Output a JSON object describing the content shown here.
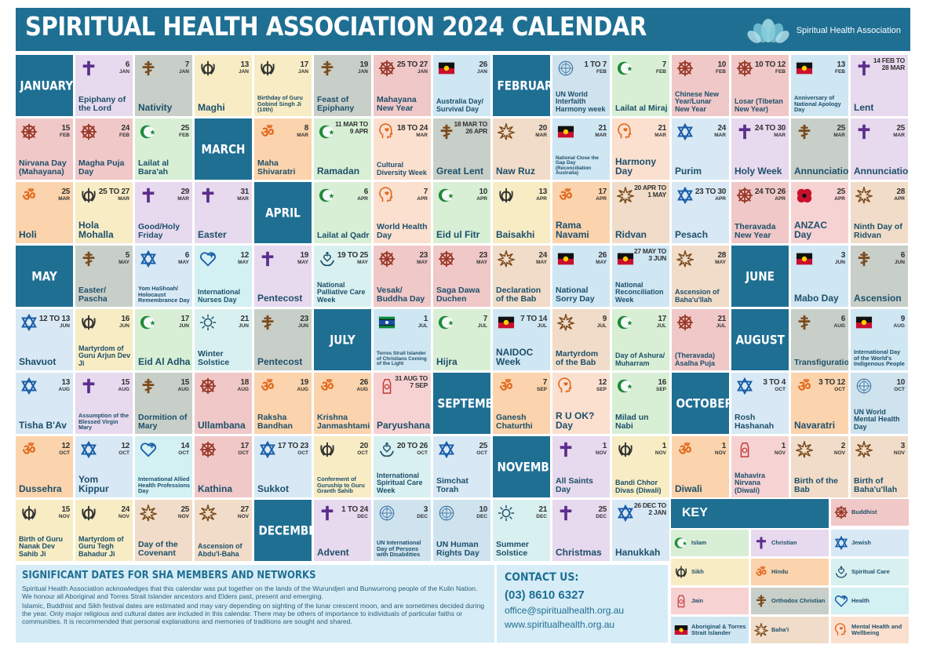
{
  "header": {
    "title": "SPIRITUAL HEALTH ASSOCIATION 2024 CALENDAR",
    "org": "Spiritual Health Association"
  },
  "colors": {
    "brand": "#1f6f93",
    "text": "#1d4f6a"
  },
  "cells": [
    {
      "t": "month",
      "name": "JANUARY"
    },
    {
      "t": "christ",
      "icon": "cross-icon",
      "d": "6",
      "m": "JAN",
      "name": "Epiphany of the Lord"
    },
    {
      "t": "orth",
      "icon": "orthodox-cross-icon",
      "d": "7",
      "m": "JAN",
      "name": "Nativity"
    },
    {
      "t": "sikh",
      "icon": "khanda-icon",
      "d": "13",
      "m": "JAN",
      "name": "Maghi"
    },
    {
      "t": "sikh",
      "icon": "khanda-icon",
      "d": "17",
      "m": "JAN",
      "name": "Birthday of Guru Gobind Singh Ji (10th)"
    },
    {
      "t": "orth",
      "icon": "orthodox-cross-icon",
      "d": "19",
      "m": "JAN",
      "name": "Feast of Epiphany"
    },
    {
      "t": "buddh",
      "icon": "dharma-wheel-icon",
      "d": "25 TO 27",
      "m": "JAN",
      "name": "Mahayana New Year"
    },
    {
      "t": "abor",
      "icon": "aboriginal-flag-icon",
      "d": "26",
      "m": "JAN",
      "name": "Australia Day/ Survival Day"
    },
    {
      "t": "month",
      "name": "FEBRUARY"
    },
    {
      "t": "un",
      "icon": "un-emblem-icon",
      "d": "1 TO 7",
      "m": "FEB",
      "name": "UN World Interfaith Harmony week"
    },
    {
      "t": "islam",
      "icon": "crescent-star-icon",
      "d": "7",
      "m": "FEB",
      "name": "Lailat al Miraj"
    },
    {
      "t": "buddh",
      "icon": "dharma-wheel-icon",
      "d": "10",
      "m": "FEB",
      "name": "Chinese New Year/Lunar New Year"
    },
    {
      "t": "buddh",
      "icon": "dharma-wheel-icon",
      "d": "10 TO 12",
      "m": "FEB",
      "name": "Losar (Tibetan New Year)"
    },
    {
      "t": "abor",
      "icon": "aboriginal-flag-icon",
      "d": "13",
      "m": "FEB",
      "name": "Anniversary of National Apology Day"
    },
    {
      "t": "christ",
      "icon": "cross-icon",
      "d": "14 FEB TO 28 MAR",
      "m": "",
      "name": "Lent"
    },
    {
      "t": "buddh",
      "icon": "dharma-wheel-icon",
      "d": "15",
      "m": "FEB",
      "name": "Nirvana Day (Mahayana)"
    },
    {
      "t": "buddh",
      "icon": "dharma-wheel-icon",
      "d": "24",
      "m": "FEB",
      "name": "Magha Puja Day"
    },
    {
      "t": "islam",
      "icon": "crescent-star-icon",
      "d": "25",
      "m": "FEB",
      "name": "Lailat al Bara'ah"
    },
    {
      "t": "month",
      "name": "MARCH"
    },
    {
      "t": "hindu",
      "icon": "om-icon",
      "d": "8",
      "m": "MAR",
      "name": "Maha Shivaratri"
    },
    {
      "t": "islam",
      "icon": "crescent-star-icon",
      "d": "11 MAR TO 9 APR",
      "m": "",
      "name": "Ramadan"
    },
    {
      "t": "mental",
      "icon": "mental-health-icon",
      "d": "18 TO 24",
      "m": "MAR",
      "name": "Cultural Diversity Week"
    },
    {
      "t": "orth",
      "icon": "orthodox-cross-icon",
      "d": "18 MAR TO 26 APR",
      "m": "",
      "name": "Great Lent"
    },
    {
      "t": "bahai",
      "icon": "bahai-star-icon",
      "d": "20",
      "m": "MAR",
      "name": "Naw Ruz"
    },
    {
      "t": "abor",
      "icon": "aboriginal-flag-icon",
      "d": "21",
      "m": "MAR",
      "name": "National Close the Gap Day (Reconciliation Australia)"
    },
    {
      "t": "mental",
      "icon": "mental-health-icon",
      "d": "21",
      "m": "MAR",
      "name": "Harmony Day"
    },
    {
      "t": "judaism",
      "icon": "star-of-david-icon",
      "d": "24",
      "m": "MAR",
      "name": "Purim"
    },
    {
      "t": "christ",
      "icon": "cross-icon",
      "d": "24 TO 30",
      "m": "MAR",
      "name": "Holy Week"
    },
    {
      "t": "orth",
      "icon": "orthodox-cross-icon",
      "d": "25",
      "m": "MAR",
      "name": "Annunciation"
    },
    {
      "t": "christ",
      "icon": "cross-icon",
      "d": "25",
      "m": "MAR",
      "name": "Annunciation"
    },
    {
      "t": "hindu",
      "icon": "om-icon",
      "d": "25",
      "m": "MAR",
      "name": "Holi"
    },
    {
      "t": "sikh",
      "icon": "khanda-icon",
      "d": "25 TO 27",
      "m": "MAR",
      "name": "Hola Mohalla"
    },
    {
      "t": "christ",
      "icon": "cross-icon",
      "d": "29",
      "m": "MAR",
      "name": "Good/Holy Friday"
    },
    {
      "t": "christ",
      "icon": "cross-icon",
      "d": "31",
      "m": "MAR",
      "name": "Easter"
    },
    {
      "t": "month",
      "name": "APRIL"
    },
    {
      "t": "islam",
      "icon": "crescent-star-icon",
      "d": "6",
      "m": "APR",
      "name": "Lailat al Qadr"
    },
    {
      "t": "mental",
      "icon": "mental-health-icon",
      "d": "7",
      "m": "APR",
      "name": "World Health Day"
    },
    {
      "t": "islam",
      "icon": "crescent-star-icon",
      "d": "10",
      "m": "APR",
      "name": "Eid ul Fitr"
    },
    {
      "t": "sikh",
      "icon": "khanda-icon",
      "d": "13",
      "m": "APR",
      "name": "Baisakhi"
    },
    {
      "t": "hindu",
      "icon": "om-icon",
      "d": "17",
      "m": "APR",
      "name": "Rama Navami"
    },
    {
      "t": "bahai",
      "icon": "bahai-star-icon",
      "d": "20 APR TO 1 MAY",
      "m": "",
      "name": "Ridvan"
    },
    {
      "t": "judaism",
      "icon": "star-of-david-icon",
      "d": "23 TO 30",
      "m": "APR",
      "name": "Pesach"
    },
    {
      "t": "buddh",
      "icon": "dharma-wheel-icon",
      "d": "24 TO 26",
      "m": "APR",
      "name": "Theravada New Year"
    },
    {
      "t": "jain",
      "icon": "poppy-icon",
      "d": "25",
      "m": "APR",
      "name": "ANZAC Day"
    },
    {
      "t": "bahai",
      "icon": "bahai-star-icon",
      "d": "28",
      "m": "APR",
      "name": "Ninth Day of Ridvan"
    },
    {
      "t": "month",
      "name": "MAY"
    },
    {
      "t": "orth",
      "icon": "orthodox-cross-icon",
      "d": "5",
      "m": "MAY",
      "name": "Easter/ Pascha"
    },
    {
      "t": "judaism",
      "icon": "star-of-david-icon",
      "d": "6",
      "m": "MAY",
      "name": "Yom HaShoah/ Holocaust Remembrance Day"
    },
    {
      "t": "health",
      "icon": "health-heart-icon",
      "d": "12",
      "m": "MAY",
      "name": "International Nurses Day"
    },
    {
      "t": "christ",
      "icon": "cross-icon",
      "d": "19",
      "m": "MAY",
      "name": "Pentecost"
    },
    {
      "t": "care",
      "icon": "spiritual-care-icon",
      "d": "19 TO 25",
      "m": "MAY",
      "name": "National Palliative Care Week"
    },
    {
      "t": "buddh",
      "icon": "dharma-wheel-icon",
      "d": "23",
      "m": "MAY",
      "name": "Vesak/ Buddha Day"
    },
    {
      "t": "buddh",
      "icon": "dharma-wheel-icon",
      "d": "23",
      "m": "MAY",
      "name": "Saga Dawa Duchen"
    },
    {
      "t": "bahai",
      "icon": "bahai-star-icon",
      "d": "24",
      "m": "MAY",
      "name": "Declaration of the Bab"
    },
    {
      "t": "abor",
      "icon": "aboriginal-flag-icon",
      "d": "26",
      "m": "MAY",
      "name": "National Sorry Day"
    },
    {
      "t": "abor",
      "icon": "aboriginal-flag-icon",
      "d": "27 MAY TO 3 JUN",
      "m": "",
      "name": "National Reconciliation Week"
    },
    {
      "t": "bahai",
      "icon": "bahai-star-icon",
      "d": "28",
      "m": "MAY",
      "name": "Ascension of Baha'u'llah"
    },
    {
      "t": "month",
      "name": "JUNE"
    },
    {
      "t": "abor",
      "icon": "aboriginal-flag-icon",
      "d": "3",
      "m": "JUN",
      "name": "Mabo Day"
    },
    {
      "t": "orth",
      "icon": "orthodox-cross-icon",
      "d": "6",
      "m": "JUN",
      "name": "Ascension"
    },
    {
      "t": "judaism",
      "icon": "star-of-david-icon",
      "d": "12 TO 13",
      "m": "JUN",
      "name": "Shavuot"
    },
    {
      "t": "sikh",
      "icon": "khanda-icon",
      "d": "16",
      "m": "JUN",
      "name": "Martyrdom of Guru Arjun Dev Ji"
    },
    {
      "t": "islam",
      "icon": "crescent-star-icon",
      "d": "17",
      "m": "JUN",
      "name": "Eid Al Adha"
    },
    {
      "t": "care",
      "icon": "sun-icon",
      "d": "21",
      "m": "JUN",
      "name": "Winter Solstice"
    },
    {
      "t": "orth",
      "icon": "orthodox-cross-icon",
      "d": "23",
      "m": "JUN",
      "name": "Pentecost"
    },
    {
      "t": "month",
      "name": "JULY"
    },
    {
      "t": "abor",
      "icon": "torres-strait-flag-icon",
      "d": "1",
      "m": "JUL",
      "name": "Torres Strait Islander of Christians Coming of the Light"
    },
    {
      "t": "islam",
      "icon": "crescent-star-icon",
      "d": "7",
      "m": "JUL",
      "name": "Hijra"
    },
    {
      "t": "abor",
      "icon": "aboriginal-flag-icon",
      "d": "7 TO 14",
      "m": "JUL",
      "name": "NAIDOC Week"
    },
    {
      "t": "bahai",
      "icon": "bahai-star-icon",
      "d": "9",
      "m": "JUL",
      "name": "Martyrdom of the Bab"
    },
    {
      "t": "islam",
      "icon": "crescent-star-icon",
      "d": "17",
      "m": "JUL",
      "name": "Day of Ashura/ Muharram"
    },
    {
      "t": "buddh",
      "icon": "dharma-wheel-icon",
      "d": "21",
      "m": "JUL",
      "name": "(Theravada) Asalha Puja"
    },
    {
      "t": "month",
      "name": "AUGUST"
    },
    {
      "t": "orth",
      "icon": "orthodox-cross-icon",
      "d": "6",
      "m": "AUG",
      "name": "Transfiguration"
    },
    {
      "t": "abor",
      "icon": "aboriginal-flag-icon",
      "d": "9",
      "m": "AUG",
      "name": "International Day of the World's Indigenous People"
    },
    {
      "t": "judaism",
      "icon": "star-of-david-icon",
      "d": "13",
      "m": "AUG",
      "name": "Tisha B'Av"
    },
    {
      "t": "christ",
      "icon": "cross-icon",
      "d": "15",
      "m": "AUG",
      "name": "Assumption of the Blessed Virgin Mary"
    },
    {
      "t": "orth",
      "icon": "orthodox-cross-icon",
      "d": "15",
      "m": "AUG",
      "name": "Dormition of Mary"
    },
    {
      "t": "buddh",
      "icon": "dharma-wheel-icon",
      "d": "18",
      "m": "AUG",
      "name": "Ullambana"
    },
    {
      "t": "hindu",
      "icon": "om-icon",
      "d": "19",
      "m": "AUG",
      "name": "Raksha Bandhan"
    },
    {
      "t": "hindu",
      "icon": "om-icon",
      "d": "26",
      "m": "AUG",
      "name": "Krishna Janmashtami"
    },
    {
      "t": "jain",
      "icon": "jain-hand-icon",
      "d": "31 AUG TO 7 SEP",
      "m": "",
      "name": "Paryushana"
    },
    {
      "t": "month",
      "name": "SEPTEMBER"
    },
    {
      "t": "hindu",
      "icon": "om-icon",
      "d": "7",
      "m": "SEP",
      "name": "Ganesh Chaturthi"
    },
    {
      "t": "mental",
      "icon": "mental-health-icon",
      "d": "12",
      "m": "SEP",
      "name": "R U OK? Day"
    },
    {
      "t": "islam",
      "icon": "crescent-star-icon",
      "d": "16",
      "m": "SEP",
      "name": "Milad un Nabi"
    },
    {
      "t": "month",
      "name": "OCTOBER"
    },
    {
      "t": "judaism",
      "icon": "star-of-david-icon",
      "d": "3 TO 4",
      "m": "OCT",
      "name": "Rosh Hashanah"
    },
    {
      "t": "hindu",
      "icon": "om-icon",
      "d": "3 TO 12",
      "m": "OCT",
      "name": "Navaratri"
    },
    {
      "t": "un",
      "icon": "un-emblem-icon",
      "d": "10",
      "m": "OCT",
      "name": "UN World Mental Health Day"
    },
    {
      "t": "hindu",
      "icon": "om-icon",
      "d": "12",
      "m": "OCT",
      "name": "Dussehra"
    },
    {
      "t": "judaism",
      "icon": "star-of-david-icon",
      "d": "12",
      "m": "OCT",
      "name": "Yom Kippur"
    },
    {
      "t": "health",
      "icon": "health-heart-icon",
      "d": "14",
      "m": "OCT",
      "name": "International Allied Health Professions Day"
    },
    {
      "t": "buddh",
      "icon": "dharma-wheel-icon",
      "d": "17",
      "m": "OCT",
      "name": "Kathina"
    },
    {
      "t": "judaism",
      "icon": "star-of-david-icon",
      "d": "17 TO 23",
      "m": "OCT",
      "name": "Sukkot"
    },
    {
      "t": "sikh",
      "icon": "khanda-icon",
      "d": "20",
      "m": "OCT",
      "name": "Conferment of Guruship to Guru Granth Sahib"
    },
    {
      "t": "care",
      "icon": "spiritual-care-icon",
      "d": "20 TO 26",
      "m": "OCT",
      "name": "International Spiritual Care Week"
    },
    {
      "t": "judaism",
      "icon": "star-of-david-icon",
      "d": "25",
      "m": "OCT",
      "name": "Simchat Torah"
    },
    {
      "t": "month",
      "name": "NOVEMBER"
    },
    {
      "t": "christ",
      "icon": "cross-icon",
      "d": "1",
      "m": "NOV",
      "name": "All Saints Day"
    },
    {
      "t": "sikh",
      "icon": "khanda-icon",
      "d": "1",
      "m": "NOV",
      "name": "Bandi Chhor Divas (Diwali)"
    },
    {
      "t": "hindu",
      "icon": "om-icon",
      "d": "1",
      "m": "NOV",
      "name": "Diwali"
    },
    {
      "t": "jain",
      "icon": "jain-hand-icon",
      "d": "1",
      "m": "NOV",
      "name": "Mahavira Nirvana (Diwali)"
    },
    {
      "t": "bahai",
      "icon": "bahai-star-icon",
      "d": "2",
      "m": "NOV",
      "name": "Birth of the Bab"
    },
    {
      "t": "bahai",
      "icon": "bahai-star-icon",
      "d": "3",
      "m": "NOV",
      "name": "Birth of Baha'u'llah"
    },
    {
      "t": "sikh",
      "icon": "khanda-icon",
      "d": "15",
      "m": "NOV",
      "name": "Birth of Guru Nanak Dev Sahib Ji"
    },
    {
      "t": "sikh",
      "icon": "khanda-icon",
      "d": "24",
      "m": "NOV",
      "name": "Martyrdom of Guru Tegh Bahadur Ji"
    },
    {
      "t": "bahai",
      "icon": "bahai-star-icon",
      "d": "25",
      "m": "NOV",
      "name": "Day of the Covenant"
    },
    {
      "t": "bahai",
      "icon": "bahai-star-icon",
      "d": "27",
      "m": "NOV",
      "name": "Ascension of Abdu'l-Baha"
    },
    {
      "t": "month",
      "name": "DECEMBER"
    },
    {
      "t": "christ",
      "icon": "cross-icon",
      "d": "1 TO 24",
      "m": "DEC",
      "name": "Advent"
    },
    {
      "t": "un",
      "icon": "un-emblem-icon",
      "d": "3",
      "m": "DEC",
      "name": "UN International Day of Persons with Disabilities"
    },
    {
      "t": "un",
      "icon": "un-emblem-icon",
      "d": "10",
      "m": "DEC",
      "name": "UN Human Rights Day"
    },
    {
      "t": "care",
      "icon": "sun-icon",
      "d": "21",
      "m": "DEC",
      "name": "Summer Solstice"
    },
    {
      "t": "christ",
      "icon": "cross-icon",
      "d": "25",
      "m": "DEC",
      "name": "Christmas"
    },
    {
      "t": "judaism",
      "icon": "star-of-david-icon",
      "d": "26 DEC TO 2 JAN",
      "m": "",
      "name": "Hanukkah"
    }
  ],
  "key": {
    "title": "KEY",
    "items": [
      {
        "t": "buddh",
        "icon": "dharma-wheel-icon",
        "label": "Buddhist"
      },
      {
        "t": "islam",
        "icon": "crescent-star-icon",
        "label": "Islam"
      },
      {
        "t": "christ",
        "icon": "cross-icon",
        "label": "Christian"
      },
      {
        "t": "judaism",
        "icon": "star-of-david-icon",
        "label": "Jewish"
      },
      {
        "t": "sikh",
        "icon": "khanda-icon",
        "label": "Sikh"
      },
      {
        "t": "hindu",
        "icon": "om-icon",
        "label": "Hindu"
      },
      {
        "t": "care",
        "icon": "spiritual-care-icon",
        "label": "Spiritual Care"
      },
      {
        "t": "jain",
        "icon": "jain-hand-icon",
        "label": "Jain"
      },
      {
        "t": "orth",
        "icon": "orthodox-cross-icon",
        "label": "Orthodox Christian"
      },
      {
        "t": "health",
        "icon": "health-heart-icon",
        "label": "Health"
      },
      {
        "t": "abor",
        "icon": "aboriginal-flag-icon",
        "label": "Aboriginal & Torres Strait Islander"
      },
      {
        "t": "bahai",
        "icon": "bahai-star-icon",
        "label": "Baha'i"
      },
      {
        "t": "mental",
        "icon": "mental-health-icon",
        "label": "Mental Health and Wellbeing"
      }
    ]
  },
  "notes": {
    "title": "SIGNIFICANT DATES FOR SHA MEMBERS AND NETWORKS",
    "p1": "Spiritual Health Association acknowledges that this calendar was put together on the lands of the Wurundjeri and Bunwurrong people of the Kulin Nation. We honour all Aboriginal and Torres Strait Islander ancestors and Elders past, present and emerging.",
    "p2": "Islamic, Buddhist and Sikh festival dates are estimated and may vary depending on sighting of the lunar crescent moon, and are sometimes decided during the year. Only major religious and cultural dates are included in this calendar. There may be others of importance to individuals of particular faiths or communities. It is recommended that personal explanations and memories of traditions are sought and shared."
  },
  "contact": {
    "title": "CONTACT US:",
    "phone": "(03) 8610 6327",
    "email": "office@spiritualhealth.org.au",
    "web": "www.spiritualhealth.org.au"
  }
}
